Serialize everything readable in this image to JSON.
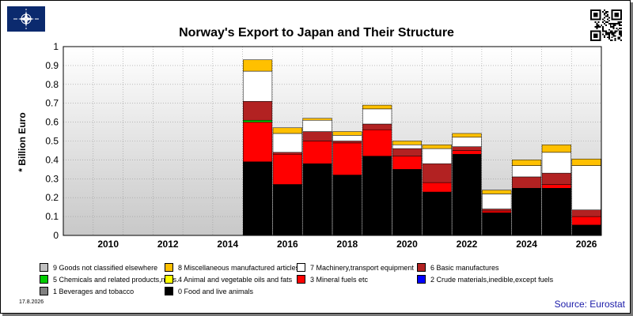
{
  "page": {
    "title": "Norway's Export to Japan and Their Structure",
    "ylabel": "* Billion Euro",
    "date": "17.8.2026",
    "source": "Source: Eurostat"
  },
  "logo_icon": "nato-star-logo",
  "qr_icon": "qr-code-icon",
  "chart_data": {
    "type": "bar",
    "stacked": true,
    "title": "Norway's Export to Japan and Their Structure",
    "ylabel": "* Billion Euro",
    "xlabel": "",
    "ylim": [
      0,
      1
    ],
    "yticks": [
      0,
      0.1,
      0.2,
      0.3,
      0.4,
      0.5,
      0.6,
      0.7,
      0.8,
      0.9,
      1
    ],
    "ytick_labels": [
      "0",
      "0.1",
      "0.2",
      "0.3",
      "0.4",
      "0.5",
      "0.6",
      "0.7",
      "0.8",
      "0.9",
      "1"
    ],
    "categories": [
      2009,
      2010,
      2011,
      2012,
      2013,
      2014,
      2015,
      2016,
      2017,
      2018,
      2019,
      2020,
      2021,
      2022,
      2023,
      2024,
      2025,
      2026
    ],
    "xtick_labels": [
      "2010",
      "2012",
      "2014",
      "2016",
      "2018",
      "2020",
      "2022",
      "2024",
      "2026"
    ],
    "xtick_positions": [
      2010,
      2012,
      2014,
      2016,
      2018,
      2020,
      2022,
      2024,
      2026
    ],
    "grid": true,
    "legend_position": "bottom",
    "series": [
      {
        "name": "0 Food and live animals",
        "color": "#000000",
        "values": [
          0,
          0,
          0,
          0,
          0,
          0,
          0.39,
          0.27,
          0.38,
          0.32,
          0.42,
          0.35,
          0.23,
          0.43,
          0.12,
          0.25,
          0.25,
          0.055
        ]
      },
      {
        "name": "3 Mineral fuels etc",
        "color": "#ff0000",
        "values": [
          0,
          0,
          0,
          0,
          0,
          0,
          0.21,
          0.16,
          0.12,
          0.17,
          0.14,
          0.07,
          0.05,
          0.02,
          0.01,
          0,
          0.02,
          0.045
        ]
      },
      {
        "name": "5 Chemicals and related products,n.e.s.",
        "color": "#00cc00",
        "values": [
          0,
          0,
          0,
          0,
          0,
          0,
          0.01,
          0,
          0,
          0,
          0,
          0,
          0,
          0,
          0,
          0,
          0,
          0
        ]
      },
      {
        "name": "6 Basic manufactures",
        "color": "#b22222",
        "values": [
          0,
          0,
          0,
          0,
          0,
          0,
          0.1,
          0.01,
          0.05,
          0.01,
          0.03,
          0.04,
          0.1,
          0.02,
          0.01,
          0.06,
          0.06,
          0.035
        ]
      },
      {
        "name": "7 Machinery,transport equipment",
        "color": "#ffffff",
        "values": [
          0,
          0,
          0,
          0,
          0,
          0,
          0.16,
          0.1,
          0.06,
          0.03,
          0.08,
          0.02,
          0.08,
          0.05,
          0.08,
          0.06,
          0.11,
          0.235
        ]
      },
      {
        "name": "8 Miscellaneous manufactured articles",
        "color": "#ffc000",
        "values": [
          0,
          0,
          0,
          0,
          0,
          0,
          0.06,
          0.03,
          0.01,
          0.02,
          0.02,
          0.02,
          0.02,
          0.02,
          0.02,
          0.03,
          0.04,
          0.035
        ]
      },
      {
        "name": "4 Animal and vegetable oils and fats",
        "color": "#ffff00",
        "values": [
          0,
          0,
          0,
          0,
          0,
          0,
          0,
          0,
          0,
          0,
          0,
          0,
          0,
          0,
          0,
          0,
          0,
          0
        ]
      },
      {
        "name": "9 Goods not classified elsewhere",
        "color": "#c0c0c0",
        "values": [
          0,
          0,
          0,
          0,
          0,
          0,
          0,
          0,
          0,
          0,
          0,
          0,
          0,
          0,
          0,
          0,
          0,
          0
        ]
      },
      {
        "name": "2 Crude materials,inedible,except fuels",
        "color": "#0000ff",
        "values": [
          0,
          0,
          0,
          0,
          0,
          0,
          0,
          0,
          0,
          0,
          0,
          0,
          0,
          0,
          0,
          0,
          0,
          0
        ]
      },
      {
        "name": "1 Beverages and tobacco",
        "color": "#808080",
        "values": [
          0,
          0,
          0,
          0,
          0,
          0,
          0,
          0,
          0,
          0,
          0,
          0,
          0,
          0,
          0,
          0,
          0,
          0
        ]
      }
    ],
    "legend": [
      {
        "label": "9 Goods not classified elsewhere",
        "color": "#c0c0c0"
      },
      {
        "label": "8 Miscellaneous manufactured articles",
        "color": "#ffc000"
      },
      {
        "label": "7 Machinery,transport equipment",
        "color": "#ffffff"
      },
      {
        "label": "6 Basic manufactures",
        "color": "#b22222"
      },
      {
        "label": "5 Chemicals and related products,n.e.s.",
        "color": "#00cc00"
      },
      {
        "label": "4 Animal and vegetable oils and fats",
        "color": "#ffff00"
      },
      {
        "label": "3 Mineral fuels etc",
        "color": "#ff0000"
      },
      {
        "label": "2 Crude materials,inedible,except fuels",
        "color": "#0000ff"
      },
      {
        "label": "1 Beverages and tobacco",
        "color": "#808080"
      },
      {
        "label": "0 Food and live animals",
        "color": "#000000"
      }
    ]
  }
}
